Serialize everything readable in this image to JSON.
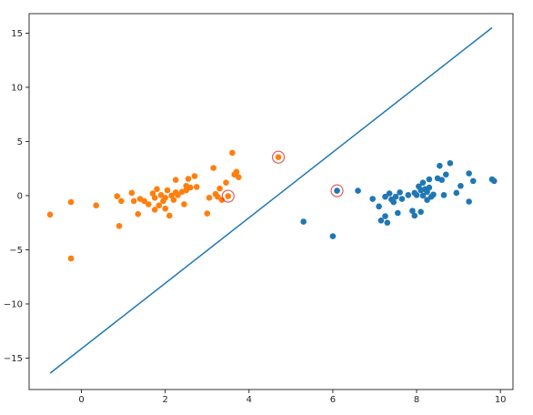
{
  "chart_data": {
    "type": "scatter",
    "title": "",
    "xlabel": "",
    "ylabel": "",
    "xlim": [
      -1.25,
      10.3
    ],
    "ylim": [
      -17.9,
      16.8
    ],
    "xticks": [
      0,
      2,
      4,
      6,
      8,
      10
    ],
    "yticks": [
      -15,
      -10,
      -5,
      0,
      5,
      10,
      15
    ],
    "grid": false,
    "legend": "none",
    "colors": {
      "class_0": "#1f77b4",
      "class_1": "#ff7f0e",
      "line": "#1f77b4",
      "highlight_ring": "#d62728"
    },
    "series": [
      {
        "color": "#1f77b4",
        "points": [
          [
            5.3,
            -2.4
          ],
          [
            6.0,
            -3.75
          ],
          [
            6.1,
            0.45
          ],
          [
            6.6,
            0.45
          ],
          [
            6.95,
            -0.3
          ],
          [
            7.1,
            -1.0
          ],
          [
            7.15,
            -2.3
          ],
          [
            7.25,
            -1.9
          ],
          [
            7.25,
            -0.1
          ],
          [
            7.3,
            -2.5
          ],
          [
            7.35,
            0.2
          ],
          [
            7.4,
            -0.35
          ],
          [
            7.45,
            -0.6
          ],
          [
            7.5,
            -0.1
          ],
          [
            7.55,
            -1.6
          ],
          [
            7.6,
            0.3
          ],
          [
            7.65,
            -0.3
          ],
          [
            7.8,
            0.05
          ],
          [
            7.9,
            -1.4
          ],
          [
            7.95,
            -1.85
          ],
          [
            7.95,
            0.25
          ],
          [
            8.0,
            0.05
          ],
          [
            8.05,
            0.85
          ],
          [
            8.1,
            0.5
          ],
          [
            8.1,
            -1.5
          ],
          [
            8.15,
            1.2
          ],
          [
            8.15,
            0.0
          ],
          [
            8.2,
            0.6
          ],
          [
            8.25,
            0.35
          ],
          [
            8.25,
            -0.4
          ],
          [
            8.3,
            0.75
          ],
          [
            8.3,
            1.5
          ],
          [
            8.35,
            -0.1
          ],
          [
            8.4,
            0.1
          ],
          [
            8.5,
            1.6
          ],
          [
            8.55,
            2.75
          ],
          [
            8.6,
            1.45
          ],
          [
            8.65,
            0.05
          ],
          [
            8.7,
            1.95
          ],
          [
            8.8,
            3.0
          ],
          [
            8.95,
            0.25
          ],
          [
            9.05,
            0.9
          ],
          [
            9.25,
            2.05
          ],
          [
            9.25,
            -0.55
          ],
          [
            9.35,
            1.35
          ],
          [
            9.8,
            1.5
          ],
          [
            9.85,
            1.35
          ]
        ]
      },
      {
        "color": "#ff7f0e",
        "points": [
          [
            -0.75,
            -1.75
          ],
          [
            -0.25,
            -0.6
          ],
          [
            -0.25,
            -5.8
          ],
          [
            0.35,
            -0.9
          ],
          [
            0.85,
            -0.05
          ],
          [
            0.9,
            -2.8
          ],
          [
            0.95,
            -0.5
          ],
          [
            1.2,
            0.25
          ],
          [
            1.25,
            -0.5
          ],
          [
            1.35,
            -1.7
          ],
          [
            1.4,
            -0.3
          ],
          [
            1.5,
            -0.5
          ],
          [
            1.6,
            -0.8
          ],
          [
            1.7,
            0.2
          ],
          [
            1.75,
            -0.2
          ],
          [
            1.75,
            -1.3
          ],
          [
            1.8,
            0.6
          ],
          [
            1.85,
            -0.9
          ],
          [
            1.9,
            0.05
          ],
          [
            1.95,
            -0.5
          ],
          [
            2.0,
            -1.2
          ],
          [
            2.0,
            -0.2
          ],
          [
            2.05,
            0.5
          ],
          [
            2.1,
            -1.85
          ],
          [
            2.15,
            0.0
          ],
          [
            2.2,
            -0.4
          ],
          [
            2.25,
            0.3
          ],
          [
            2.25,
            1.45
          ],
          [
            2.3,
            0.05
          ],
          [
            2.4,
            0.35
          ],
          [
            2.45,
            -0.8
          ],
          [
            2.5,
            0.9
          ],
          [
            2.5,
            0.5
          ],
          [
            2.55,
            1.55
          ],
          [
            2.6,
            0.75
          ],
          [
            2.7,
            1.8
          ],
          [
            2.75,
            0.8
          ],
          [
            3.0,
            -1.65
          ],
          [
            3.05,
            -0.2
          ],
          [
            3.15,
            2.55
          ],
          [
            3.2,
            0.15
          ],
          [
            3.25,
            -0.1
          ],
          [
            3.3,
            0.65
          ],
          [
            3.35,
            -0.4
          ],
          [
            3.45,
            1.2
          ],
          [
            3.5,
            -0.05
          ],
          [
            3.6,
            3.95
          ],
          [
            3.65,
            1.95
          ],
          [
            3.7,
            2.2
          ],
          [
            3.75,
            1.7
          ],
          [
            4.7,
            3.55
          ]
        ]
      }
    ],
    "highlighted_points": [
      [
        3.5,
        -0.05
      ],
      [
        4.7,
        3.55
      ],
      [
        6.1,
        0.45
      ]
    ],
    "decision_line": {
      "x": [
        -0.75,
        9.8
      ],
      "y": [
        -16.4,
        15.5
      ]
    }
  }
}
